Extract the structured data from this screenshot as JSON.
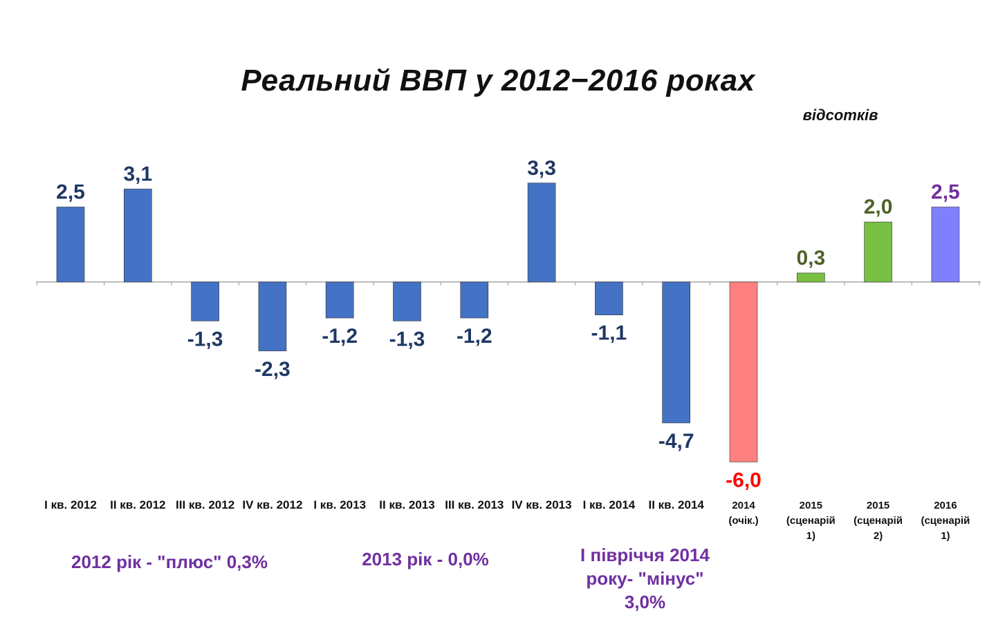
{
  "chart_data": {
    "type": "bar",
    "title": "Реальний ВВП у 2012−2016 роках",
    "units": "відсотків",
    "xlabel": "",
    "ylabel": "",
    "ylim": [
      -6.5,
      3.5
    ],
    "grid": false,
    "legend": "none",
    "categories": [
      [
        "I кв. 2012"
      ],
      [
        "II кв. 2012"
      ],
      [
        "III кв. 2012"
      ],
      [
        "IV кв. 2012"
      ],
      [
        "I кв. 2013"
      ],
      [
        "II кв. 2013"
      ],
      [
        "III кв. 2013"
      ],
      [
        "IV кв. 2013"
      ],
      [
        "I кв. 2014"
      ],
      [
        "II кв. 2014"
      ],
      [
        "2014",
        "(очік.)"
      ],
      [
        "2015",
        "(сценарій",
        "1)"
      ],
      [
        "2015",
        "(сценарій",
        "2)"
      ],
      [
        "2016",
        "(сценарій",
        "1)"
      ]
    ],
    "values": [
      2.5,
      3.1,
      -1.3,
      -2.3,
      -1.2,
      -1.3,
      -1.2,
      3.3,
      -1.1,
      -4.7,
      -6.0,
      0.3,
      2.0,
      2.5
    ],
    "value_labels": [
      "2,5",
      "3,1",
      "-1,3",
      "-2,3",
      "-1,2",
      "-1,3",
      "-1,2",
      "3,3",
      "-1,1",
      "-4,7",
      "-6,0",
      "0,3",
      "2,0",
      "2,5"
    ],
    "bar_colors": [
      "#4472c4",
      "#4472c4",
      "#4472c4",
      "#4472c4",
      "#4472c4",
      "#4472c4",
      "#4472c4",
      "#4472c4",
      "#4472c4",
      "#4472c4",
      "#ff8080",
      "#7ac143",
      "#7ac143",
      "#8080ff"
    ],
    "label_colors": [
      "#1f3864",
      "#1f3864",
      "#1f3864",
      "#1f3864",
      "#1f3864",
      "#1f3864",
      "#1f3864",
      "#1f3864",
      "#1f3864",
      "#1f3864",
      "#ff0000",
      "#4f6228",
      "#4f6228",
      "#7030a0"
    ]
  },
  "annotations": {
    "note_2012": "2012 рік - \"плюс\" 0,3%",
    "note_2013": "2013 рік - 0,0%",
    "note_2014": "І півріччя 2014 року- \"мінус\" 3,0%",
    "color": "#7030a0"
  }
}
